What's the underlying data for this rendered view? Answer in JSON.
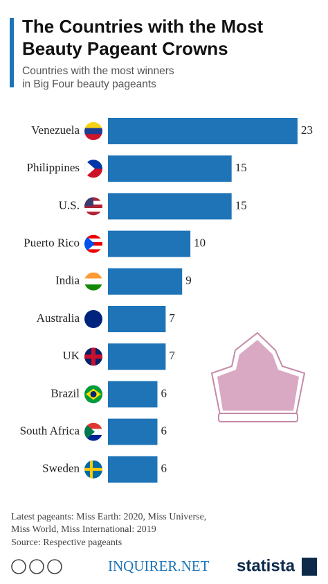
{
  "chart_data": {
    "type": "bar",
    "title_lines": [
      "The Countries with the Most",
      "Beauty Pageant Crowns"
    ],
    "subtitle_lines": [
      "Countries with the most winners",
      "in Big Four beauty pageants"
    ],
    "categories": [
      "Venezuela",
      "Philippines",
      "U.S.",
      "Puerto Rico",
      "India",
      "Australia",
      "UK",
      "Brazil",
      "South Africa",
      "Sweden"
    ],
    "values": [
      23,
      15,
      15,
      10,
      9,
      7,
      7,
      6,
      6,
      6
    ],
    "color": "#1f74b8"
  },
  "notes": [
    "Latest pageants: Miss Earth: 2020, Miss Universe,",
    "Miss World, Miss International: 2019"
  ],
  "source": "Source: Respective pageants",
  "footer": {
    "publisher": "INQUIRER.NET",
    "brand": "statista"
  }
}
